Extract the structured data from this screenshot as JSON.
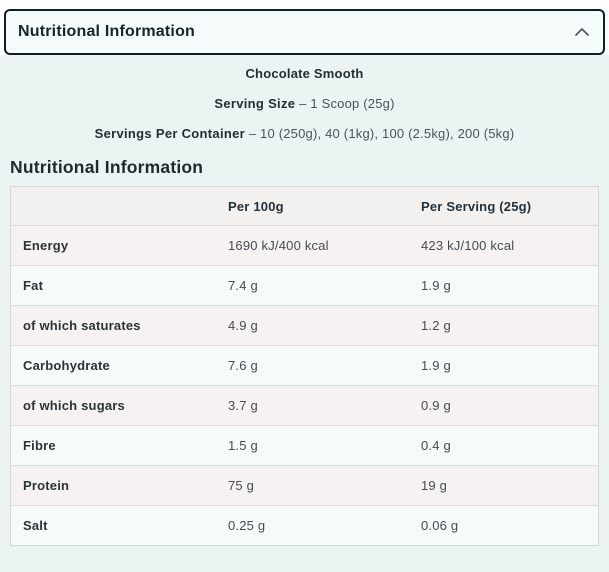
{
  "accordion": {
    "title": "Nutritional Information"
  },
  "product": {
    "flavour": "Chocolate Smooth",
    "serving_size_label": "Serving Size",
    "serving_size_value": "– 1 Scoop (25g)",
    "servings_label": "Servings Per Container",
    "servings_value": "– 10 (250g), 40 (1kg), 100 (2.5kg), 200 (5kg)"
  },
  "section_title": "Nutritional Information",
  "table": {
    "columns": [
      "",
      "Per 100g",
      "Per Serving (25g)"
    ],
    "rows": [
      {
        "label": "Energy",
        "per100": "1690 kJ/400 kcal",
        "per_serving": "423 kJ/100 kcal"
      },
      {
        "label": "Fat",
        "per100": "7.4 g",
        "per_serving": "1.9 g"
      },
      {
        "label": "of which saturates",
        "per100": "4.9 g",
        "per_serving": "1.2 g"
      },
      {
        "label": "Carbohydrate",
        "per100": "7.6 g",
        "per_serving": "1.9 g"
      },
      {
        "label": "of which sugars",
        "per100": "3.7 g",
        "per_serving": "0.9 g"
      },
      {
        "label": "Fibre",
        "per100": "1.5 g",
        "per_serving": "0.4 g"
      },
      {
        "label": "Protein",
        "per100": "75 g",
        "per_serving": "19 g"
      },
      {
        "label": "Salt",
        "per100": "0.25 g",
        "per_serving": "0.06 g"
      }
    ]
  },
  "icons": {
    "header_chevron": "chevron-up-icon"
  },
  "colors": {
    "accordion_border": "#0c2127",
    "accordion_bg": "#f5fafa",
    "panel_bg": "#ecf4f3",
    "row_warm": "#f5f2f1",
    "row_mint": "#f6faf9",
    "header_row_bg": "#f3f1f0"
  }
}
